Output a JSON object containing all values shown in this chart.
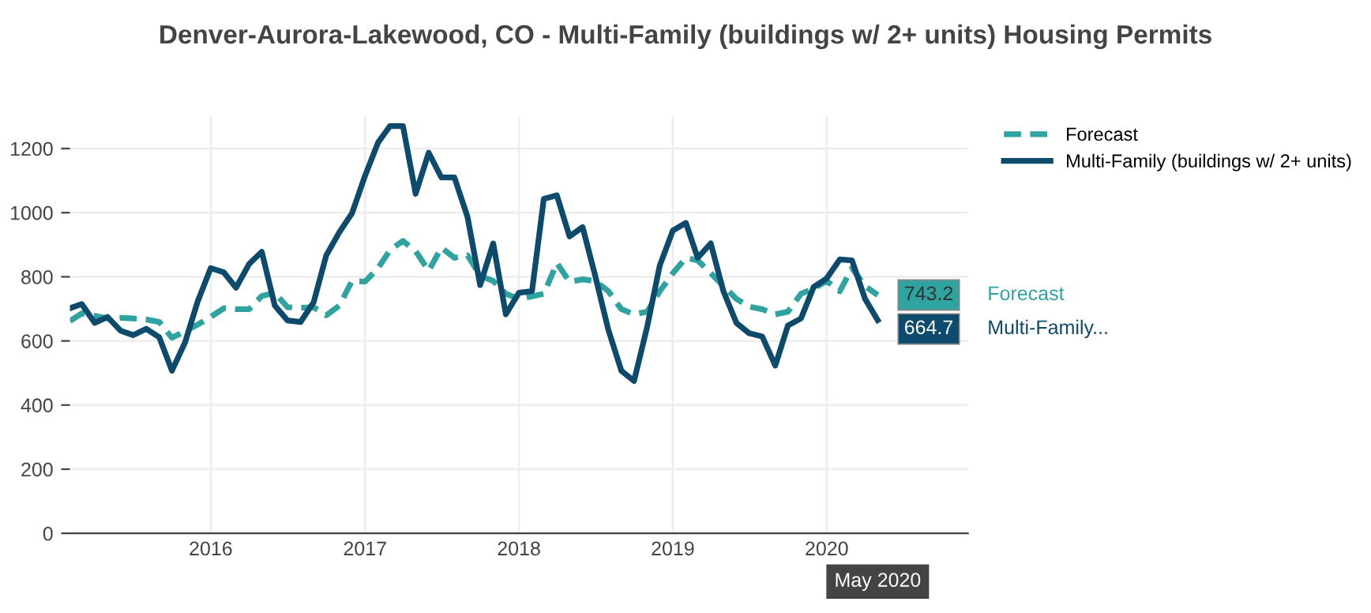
{
  "chart_data": {
    "type": "line",
    "title": "Denver-Aurora-Lakewood, CO - Multi-Family (buildings w/ 2+ units) Housing Permits",
    "x": [
      "2015-02",
      "2015-03",
      "2015-04",
      "2015-05",
      "2015-06",
      "2015-07",
      "2015-08",
      "2015-09",
      "2015-10",
      "2015-11",
      "2015-12",
      "2016-01",
      "2016-02",
      "2016-03",
      "2016-04",
      "2016-05",
      "2016-06",
      "2016-07",
      "2016-08",
      "2016-09",
      "2016-10",
      "2016-11",
      "2016-12",
      "2017-01",
      "2017-02",
      "2017-03",
      "2017-04",
      "2017-05",
      "2017-06",
      "2017-07",
      "2017-08",
      "2017-09",
      "2017-10",
      "2017-11",
      "2017-12",
      "2018-01",
      "2018-02",
      "2018-03",
      "2018-04",
      "2018-05",
      "2018-06",
      "2018-07",
      "2018-08",
      "2018-09",
      "2018-10",
      "2018-11",
      "2018-12",
      "2019-01",
      "2019-02",
      "2019-03",
      "2019-04",
      "2019-05",
      "2019-06",
      "2019-07",
      "2019-08",
      "2019-09",
      "2019-10",
      "2019-11",
      "2019-12",
      "2020-01",
      "2020-02",
      "2020-03",
      "2020-04",
      "2020-05"
    ],
    "series": [
      {
        "name": "Forecast",
        "color": "#2fa3a0",
        "line_style": "dashed",
        "values": [
          662,
          686,
          678,
          670,
          672,
          670,
          667,
          659,
          610,
          630,
          651,
          675,
          702,
          699,
          699,
          740,
          750,
          705,
          703,
          705,
          680,
          710,
          787,
          785,
          827,
          883,
          912,
          880,
          819,
          891,
          859,
          867,
          803,
          787,
          747,
          731,
          739,
          747,
          843,
          784,
          792,
          787,
          755,
          699,
          683,
          691,
          755,
          811,
          859,
          851,
          811,
          771,
          731,
          707,
          699,
          683,
          691,
          747,
          763,
          787,
          755,
          827,
          771,
          743.2
        ]
      },
      {
        "name": "Multi-Family (buildings w/ 2+ units)",
        "color": "#0d4a6b",
        "line_style": "solid",
        "values": [
          702,
          715,
          656,
          675,
          632,
          618,
          638,
          611,
          507,
          595,
          723,
          827,
          814,
          766,
          840,
          878,
          710,
          664,
          659,
          720,
          867,
          939,
          998,
          1115,
          1219,
          1270,
          1270,
          1059,
          1187,
          1110,
          1110,
          987,
          774,
          904,
          683,
          750,
          755,
          1043,
          1054,
          926,
          955,
          803,
          635,
          507,
          475,
          643,
          835,
          944,
          968,
          859,
          904,
          755,
          656,
          624,
          614,
          523,
          648,
          670,
          768,
          795,
          854,
          851,
          731,
          664.7
        ]
      }
    ],
    "xlim": [
      "2015-02",
      "2020-12"
    ],
    "xticks": [
      "2016",
      "2017",
      "2018",
      "2019",
      "2020"
    ],
    "ylim": [
      0,
      1300
    ],
    "yticks": [
      0,
      200,
      400,
      600,
      800,
      1000,
      1200
    ],
    "grid": true,
    "legend": "top right",
    "marker": "none",
    "annotations": [
      {
        "text": "743.2",
        "x": "2020-05",
        "y": 743.2
      },
      {
        "text": "664.7",
        "x": "2020-05",
        "y": 664.7
      },
      "Forecast",
      "Multi-Family...",
      "May 2020"
    ]
  }
}
